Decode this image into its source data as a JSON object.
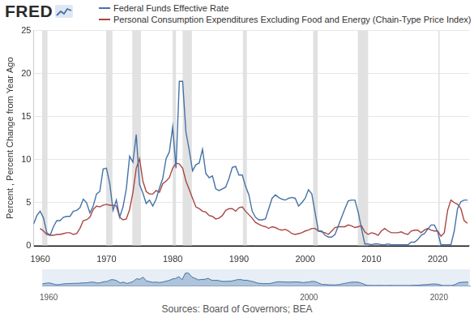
{
  "chart_data": {
    "type": "line",
    "logo": "FRED",
    "y_label": "Percent , Percent Change from Year Ago",
    "source": "Sources: Board of Governors; BEA",
    "legend": "top",
    "grid": true,
    "xlim": [
      1959,
      2024.75
    ],
    "xticks": [
      1960,
      1970,
      1980,
      1990,
      2000,
      2010,
      2020
    ],
    "ylim": [
      0,
      25
    ],
    "yticks": [
      0,
      5,
      10,
      15,
      20,
      25
    ],
    "x": [
      1959,
      1959.5,
      1960,
      1960.5,
      1961,
      1961.5,
      1962,
      1962.5,
      1963,
      1963.5,
      1964,
      1964.5,
      1965,
      1965.5,
      1966,
      1966.5,
      1967,
      1967.5,
      1968,
      1968.5,
      1969,
      1969.5,
      1970,
      1970.5,
      1971,
      1971.5,
      1972,
      1972.5,
      1973,
      1973.5,
      1974,
      1974.5,
      1975,
      1975.5,
      1976,
      1976.5,
      1977,
      1977.5,
      1978,
      1978.5,
      1979,
      1979.5,
      1980,
      1980.5,
      1981,
      1981.5,
      1982,
      1982.5,
      1983,
      1983.5,
      1984,
      1984.5,
      1985,
      1985.5,
      1986,
      1986.5,
      1987,
      1987.5,
      1988,
      1988.5,
      1989,
      1989.5,
      1990,
      1990.5,
      1991,
      1991.5,
      1992,
      1992.5,
      1993,
      1993.5,
      1994,
      1994.5,
      1995,
      1995.5,
      1996,
      1996.5,
      1997,
      1997.5,
      1998,
      1998.5,
      1999,
      1999.5,
      2000,
      2000.5,
      2001,
      2001.5,
      2002,
      2002.5,
      2003,
      2003.5,
      2004,
      2004.5,
      2005,
      2005.5,
      2006,
      2006.5,
      2007,
      2007.5,
      2008,
      2008.5,
      2009,
      2009.5,
      2010,
      2010.5,
      2011,
      2011.5,
      2012,
      2012.5,
      2013,
      2013.5,
      2014,
      2014.5,
      2015,
      2015.5,
      2016,
      2016.5,
      2017,
      2017.5,
      2018,
      2018.5,
      2019,
      2019.5,
      2020,
      2020.5,
      2021,
      2021.5,
      2022,
      2022.5,
      2023,
      2023.5,
      2024,
      2024.5
    ],
    "series": [
      {
        "name": "Federal Funds Effective Rate",
        "color": "#4572a7",
        "values": [
          2.5,
          3.5,
          4.0,
          3.2,
          1.5,
          1.2,
          2.2,
          2.9,
          2.9,
          3.3,
          3.4,
          3.4,
          4.0,
          4.1,
          4.4,
          5.4,
          5.0,
          3.8,
          4.6,
          6.0,
          6.3,
          8.9,
          9.0,
          7.2,
          4.1,
          5.3,
          3.3,
          4.5,
          6.6,
          10.4,
          9.7,
          12.9,
          7.1,
          6.1,
          4.9,
          5.3,
          4.6,
          5.4,
          6.7,
          7.8,
          10.1,
          10.9,
          13.8,
          9.0,
          19.1,
          19.1,
          13.2,
          11.1,
          8.7,
          9.4,
          9.6,
          11.2,
          8.4,
          7.9,
          8.1,
          6.6,
          6.4,
          6.6,
          6.8,
          7.8,
          9.1,
          9.2,
          8.2,
          8.2,
          6.9,
          5.9,
          4.0,
          3.3,
          3.0,
          3.0,
          3.1,
          4.3,
          5.5,
          5.9,
          5.6,
          5.4,
          5.3,
          5.5,
          5.6,
          5.5,
          4.6,
          5.0,
          5.5,
          6.5,
          6.0,
          3.8,
          1.7,
          1.7,
          1.2,
          1.0,
          1.0,
          1.3,
          2.3,
          3.3,
          4.3,
          5.2,
          5.3,
          5.3,
          3.9,
          2.0,
          0.2,
          0.2,
          0.1,
          0.2,
          0.2,
          0.1,
          0.1,
          0.2,
          0.1,
          0.1,
          0.1,
          0.1,
          0.1,
          0.1,
          0.4,
          0.4,
          0.7,
          1.2,
          1.4,
          1.9,
          2.4,
          2.4,
          1.6,
          0.1,
          0.1,
          0.1,
          0.1,
          1.7,
          4.3,
          5.1,
          5.3,
          5.3
        ]
      },
      {
        "name": "Personal Consumption Expenditures Excluding Food and Energy (Chain-Type Price Index)",
        "color": "#aa4643",
        "values": [
          null,
          null,
          2.0,
          1.7,
          1.3,
          1.2,
          1.2,
          1.3,
          1.3,
          1.4,
          1.5,
          1.5,
          1.3,
          1.4,
          2.0,
          2.9,
          3.0,
          3.3,
          4.2,
          4.6,
          4.5,
          4.7,
          4.8,
          4.7,
          4.7,
          4.6,
          3.3,
          3.0,
          3.1,
          4.2,
          6.2,
          9.0,
          10.1,
          7.5,
          6.3,
          6.0,
          6.0,
          6.4,
          6.2,
          7.2,
          7.5,
          7.9,
          9.0,
          9.6,
          9.5,
          9.0,
          7.5,
          6.5,
          5.5,
          4.5,
          4.3,
          4.0,
          3.9,
          3.5,
          3.4,
          3.1,
          3.2,
          3.5,
          4.1,
          4.3,
          4.3,
          4.0,
          4.4,
          4.5,
          4.0,
          3.6,
          3.2,
          2.7,
          2.5,
          2.3,
          2.2,
          2.0,
          2.2,
          2.1,
          1.9,
          1.8,
          1.9,
          1.7,
          1.4,
          1.3,
          1.4,
          1.5,
          1.7,
          1.8,
          2.0,
          2.0,
          1.7,
          1.6,
          1.5,
          1.3,
          1.7,
          2.1,
          2.2,
          2.2,
          2.2,
          2.4,
          2.3,
          2.1,
          2.2,
          2.3,
          1.6,
          1.3,
          1.5,
          1.4,
          1.2,
          1.7,
          2.0,
          1.7,
          1.5,
          1.5,
          1.5,
          1.6,
          1.4,
          1.3,
          1.7,
          1.8,
          1.8,
          1.5,
          1.8,
          2.0,
          1.8,
          1.7,
          1.7,
          1.1,
          1.5,
          4.1,
          5.3,
          5.0,
          4.8,
          4.3,
          2.9,
          2.6
        ]
      }
    ],
    "recessions": [
      [
        1960.3,
        1961.1
      ],
      [
        1969.95,
        1970.9
      ],
      [
        1973.9,
        1975.2
      ],
      [
        1980.0,
        1980.5
      ],
      [
        1981.5,
        1982.9
      ],
      [
        1990.6,
        1991.2
      ],
      [
        2001.2,
        2001.9
      ],
      [
        2007.95,
        2009.5
      ],
      [
        2020.1,
        2020.3
      ]
    ],
    "navigator": {
      "xticks": [
        1960,
        2000,
        2020
      ]
    }
  }
}
